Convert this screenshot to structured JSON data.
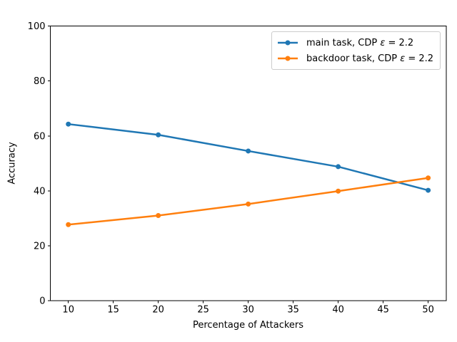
{
  "chart_data": {
    "type": "line",
    "x": [
      10,
      20,
      30,
      40,
      50
    ],
    "series": [
      {
        "name": "main task, CDP ε = 2.2",
        "values": [
          64.3,
          60.4,
          54.5,
          48.8,
          40.2
        ],
        "color": "#1f77b4",
        "marker": "circle"
      },
      {
        "name": "backdoor task, CDP ε = 2.2",
        "values": [
          27.7,
          31.0,
          35.2,
          39.9,
          44.7
        ],
        "color": "#ff7f0e",
        "marker": "circle"
      }
    ],
    "title": "",
    "xlabel": "Percentage of Attackers",
    "ylabel": "Accuracy",
    "xlim": [
      8,
      52
    ],
    "ylim": [
      0,
      100
    ],
    "xticks": [
      10,
      15,
      20,
      25,
      30,
      35,
      40,
      45,
      50
    ],
    "yticks": [
      0,
      20,
      40,
      60,
      80,
      100
    ],
    "grid": false,
    "legend_position": "upper right",
    "spine_color": "#000000",
    "tick_color": "#000000"
  }
}
